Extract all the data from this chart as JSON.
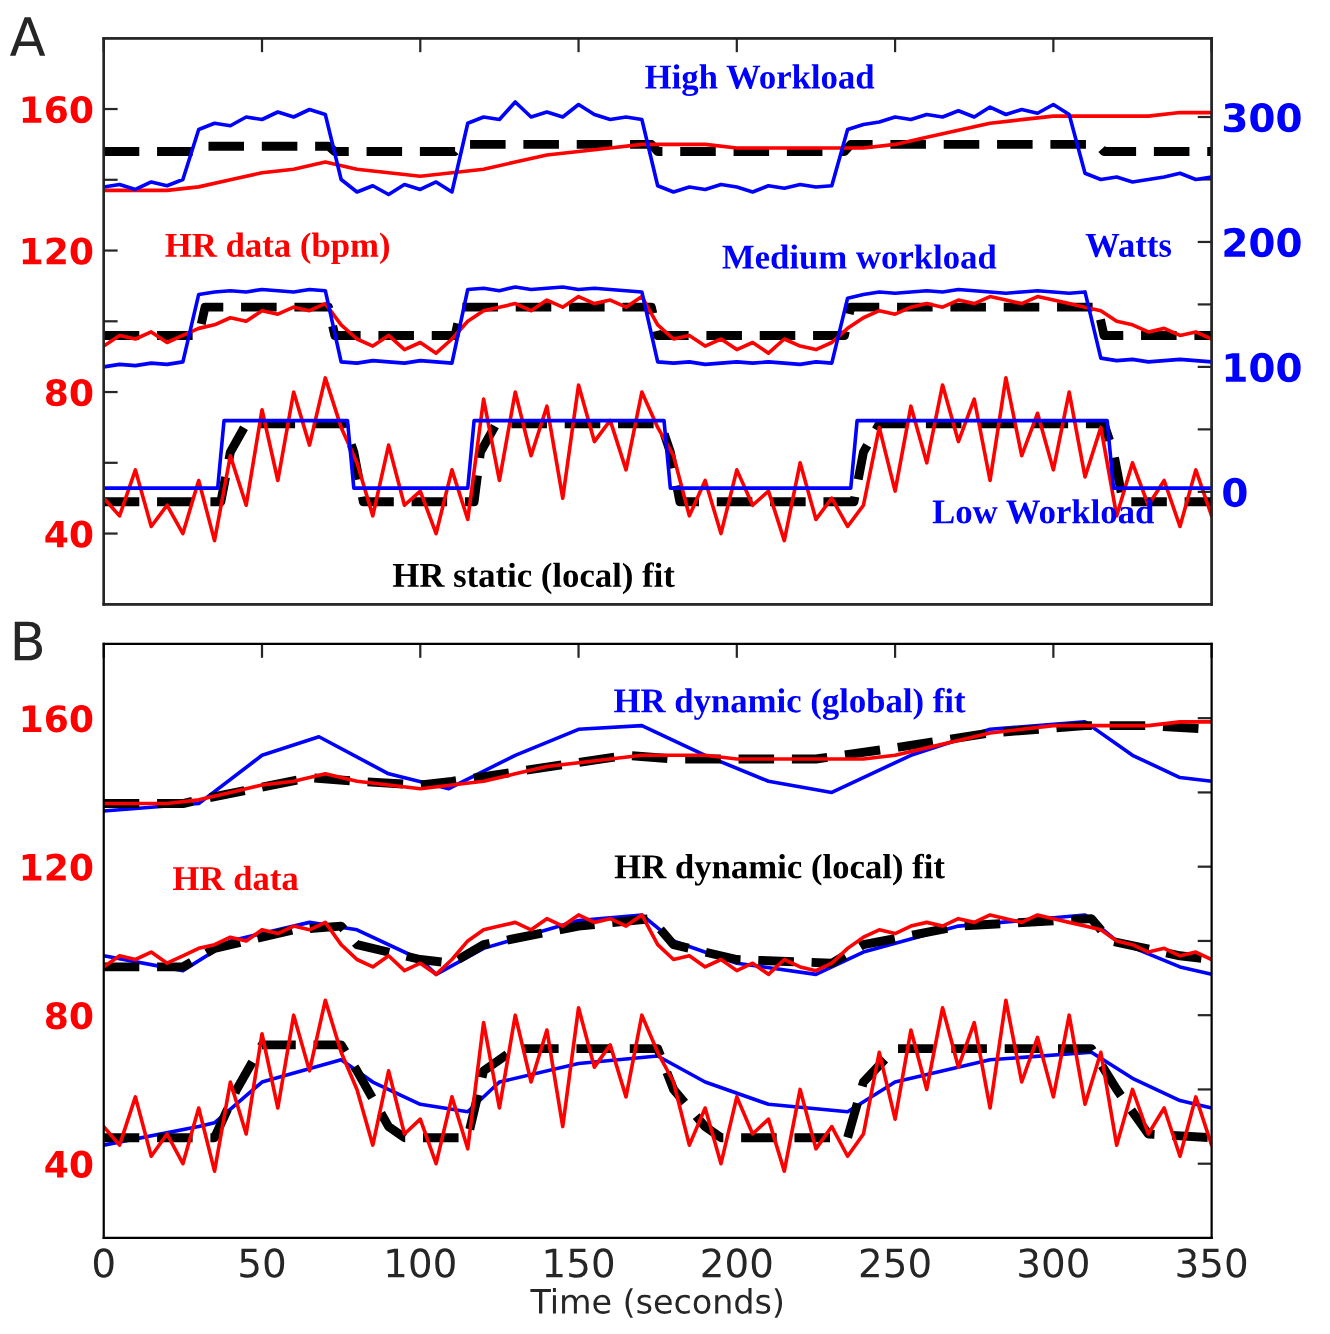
{
  "chart_data": [
    {
      "type": "line",
      "title": "A",
      "xlim": [
        0,
        350
      ],
      "xticks": [
        {
          "value": 0,
          "label": null
        },
        {
          "value": 50,
          "label": null
        },
        {
          "value": 100,
          "label": null
        },
        {
          "value": 150,
          "label": null
        },
        {
          "value": 200,
          "label": null
        },
        {
          "value": 250,
          "label": null
        },
        {
          "value": 300,
          "label": null
        },
        {
          "value": 350,
          "label": null
        }
      ],
      "ylim": [
        20,
        180
      ],
      "yticks": [
        40,
        {
          "value": 60,
          "label": null
        },
        80,
        {
          "value": 100,
          "label": null
        },
        120,
        {
          "value": 140,
          "label": null
        },
        160
      ],
      "y2label": "Watts",
      "y2lim": [
        -90,
        363
      ],
      "y2ticks": [
        0,
        {
          "value": 50,
          "label": null
        },
        100,
        {
          "value": 150,
          "label": null
        },
        200,
        {
          "value": 250,
          "label": null
        },
        300
      ],
      "tick_labels": "y",
      "marker": "none",
      "series": [
        {
          "name": "High Workload",
          "color": "#0000ff",
          "axis": "y2",
          "x": [
            0,
            5,
            10,
            15,
            20,
            25,
            30,
            35,
            40,
            45,
            50,
            55,
            60,
            65,
            70,
            75,
            80,
            85,
            90,
            95,
            100,
            105,
            110,
            115,
            120,
            125,
            130,
            135,
            140,
            145,
            150,
            155,
            160,
            165,
            170,
            175,
            180,
            185,
            190,
            195,
            200,
            205,
            210,
            215,
            220,
            225,
            230,
            235,
            240,
            245,
            250,
            255,
            260,
            265,
            270,
            275,
            280,
            285,
            290,
            295,
            300,
            305,
            310,
            315,
            320,
            325,
            330,
            335,
            340,
            345,
            350
          ],
          "values": [
            244,
            246,
            242,
            248,
            245,
            250,
            290,
            295,
            293,
            300,
            298,
            304,
            300,
            306,
            302,
            250,
            240,
            245,
            238,
            246,
            242,
            248,
            240,
            295,
            300,
            298,
            312,
            300,
            304,
            300,
            310,
            302,
            298,
            300,
            298,
            245,
            240,
            244,
            242,
            246,
            244,
            240,
            245,
            243,
            246,
            244,
            245,
            290,
            294,
            296,
            300,
            298,
            302,
            300,
            305,
            300,
            308,
            302,
            306,
            303,
            310,
            302,
            255,
            250,
            252,
            248,
            250,
            252,
            255,
            250,
            252
          ]
        },
        {
          "color": "#000000",
          "line_style": "dashed",
          "x": [
            0,
            30,
            32,
            71,
            73,
            111,
            113,
            173,
            175,
            234,
            236,
            314,
            316,
            350
          ],
          "values": [
            148,
            148,
            149.5,
            149.5,
            148,
            148,
            150,
            150,
            148,
            148,
            150,
            150,
            148,
            148
          ]
        },
        {
          "color": "#ff0000",
          "x": [
            0,
            10,
            20,
            30,
            40,
            50,
            60,
            70,
            80,
            90,
            100,
            110,
            120,
            130,
            140,
            150,
            160,
            170,
            180,
            190,
            200,
            210,
            220,
            230,
            240,
            250,
            260,
            270,
            280,
            290,
            300,
            310,
            320,
            330,
            340,
            350
          ],
          "values": [
            137,
            137,
            137,
            138,
            140,
            142,
            143,
            145,
            143,
            142,
            141,
            142,
            143,
            145,
            147,
            148,
            149,
            150,
            150,
            150,
            149,
            149,
            149,
            149,
            149,
            150,
            152,
            154,
            156,
            157,
            158,
            158,
            158,
            158,
            159,
            159
          ]
        },
        {
          "name": "Medium workload",
          "color": "#0000ff",
          "axis": "y2",
          "x": [
            0,
            5,
            10,
            15,
            20,
            25,
            30,
            35,
            40,
            45,
            50,
            55,
            60,
            65,
            70,
            75,
            80,
            85,
            90,
            95,
            100,
            105,
            110,
            115,
            120,
            125,
            130,
            135,
            140,
            145,
            150,
            155,
            160,
            165,
            170,
            175,
            180,
            185,
            190,
            195,
            200,
            205,
            210,
            215,
            220,
            225,
            230,
            235,
            240,
            245,
            250,
            255,
            260,
            265,
            270,
            275,
            280,
            285,
            290,
            295,
            300,
            305,
            310,
            315,
            320,
            325,
            330,
            335,
            340,
            345,
            350
          ],
          "values": [
            100,
            102,
            101,
            103,
            102,
            104,
            158,
            160,
            161,
            160,
            162,
            161,
            160,
            162,
            161,
            104,
            103,
            105,
            104,
            103,
            105,
            104,
            103,
            162,
            163,
            161,
            164,
            162,
            163,
            164,
            162,
            163,
            162,
            161,
            160,
            104,
            103,
            104,
            102,
            103,
            104,
            103,
            104,
            103,
            102,
            104,
            103,
            155,
            158,
            160,
            159,
            160,
            161,
            160,
            162,
            161,
            160,
            159,
            160,
            161,
            160,
            159,
            160,
            107,
            105,
            106,
            104,
            105,
            106,
            105,
            104
          ]
        },
        {
          "color": "#000000",
          "line_style": "dashed",
          "x": [
            0,
            30,
            32,
            71,
            73,
            111,
            113,
            173,
            175,
            234,
            236,
            314,
            316,
            350
          ],
          "values": [
            96,
            96,
            104,
            104,
            96,
            96,
            104,
            104,
            96,
            96,
            104,
            104,
            96,
            96
          ]
        },
        {
          "name": "HR data (bpm)",
          "color": "#ff0000",
          "x": [
            0,
            5,
            10,
            15,
            20,
            25,
            30,
            35,
            40,
            45,
            50,
            55,
            60,
            65,
            70,
            75,
            80,
            85,
            90,
            95,
            100,
            105,
            110,
            115,
            120,
            125,
            130,
            135,
            140,
            145,
            150,
            155,
            160,
            165,
            170,
            175,
            180,
            185,
            190,
            195,
            200,
            205,
            210,
            215,
            220,
            225,
            230,
            235,
            240,
            245,
            250,
            255,
            260,
            265,
            270,
            275,
            280,
            285,
            290,
            295,
            300,
            305,
            310,
            315,
            320,
            325,
            330,
            335,
            340,
            345,
            350
          ],
          "values": [
            93,
            96,
            95,
            97,
            94,
            96,
            98,
            99,
            101,
            100,
            103,
            102,
            104,
            103,
            105,
            99,
            95,
            93,
            96,
            92,
            94,
            91,
            95,
            100,
            103,
            104,
            105,
            103,
            106,
            104,
            107,
            105,
            106,
            104,
            107,
            99,
            95,
            96,
            93,
            95,
            92,
            94,
            91,
            95,
            93,
            92,
            94,
            98,
            101,
            103,
            102,
            104,
            105,
            104,
            106,
            105,
            107,
            106,
            105,
            107,
            106,
            105,
            104,
            103,
            100,
            99,
            97,
            98,
            96,
            97,
            95
          ]
        },
        {
          "name": "Low Workload",
          "color": "#0000ff",
          "axis": "y2",
          "x": [
            0,
            36,
            38,
            77,
            79,
            115,
            117,
            177,
            179,
            236,
            238,
            317,
            319,
            350
          ],
          "values": [
            3,
            3,
            57,
            57,
            3,
            3,
            57,
            57,
            3,
            3,
            57,
            57,
            3,
            3
          ]
        },
        {
          "name": "HR static (local) fit",
          "color": "#000000",
          "line_style": "dashed",
          "x": [
            0,
            37,
            40,
            45,
            76,
            79,
            82,
            117,
            119,
            124,
            176,
            179,
            182,
            237,
            240,
            245,
            316,
            319,
            322,
            350
          ],
          "values": [
            49,
            49,
            63,
            71,
            71,
            63,
            49,
            49,
            63,
            71,
            71,
            63,
            49,
            49,
            63,
            71,
            71,
            63,
            49,
            49
          ]
        },
        {
          "color": "#ff0000",
          "x": [
            0,
            5,
            10,
            15,
            20,
            25,
            30,
            35,
            40,
            45,
            50,
            55,
            60,
            65,
            70,
            75,
            80,
            85,
            90,
            95,
            100,
            105,
            110,
            115,
            120,
            125,
            130,
            135,
            140,
            145,
            150,
            155,
            160,
            165,
            170,
            175,
            180,
            185,
            190,
            195,
            200,
            205,
            210,
            215,
            220,
            225,
            230,
            235,
            240,
            245,
            250,
            255,
            260,
            265,
            270,
            275,
            280,
            285,
            290,
            295,
            300,
            305,
            310,
            315,
            320,
            325,
            330,
            335,
            340,
            345,
            350
          ],
          "values": [
            50,
            45,
            58,
            42,
            48,
            40,
            55,
            38,
            62,
            48,
            75,
            55,
            80,
            65,
            84,
            70,
            60,
            45,
            65,
            48,
            52,
            40,
            58,
            44,
            78,
            55,
            80,
            62,
            76,
            50,
            82,
            66,
            72,
            58,
            80,
            70,
            62,
            45,
            55,
            40,
            58,
            48,
            52,
            38,
            60,
            44,
            50,
            42,
            48,
            70,
            52,
            76,
            60,
            82,
            66,
            78,
            55,
            84,
            62,
            74,
            58,
            80,
            56,
            70,
            45,
            60,
            48,
            55,
            42,
            58,
            45
          ]
        }
      ]
    },
    {
      "type": "line",
      "title": "B",
      "xlabel": "Time (seconds)",
      "xlim": [
        0,
        350
      ],
      "xticks": [
        0,
        50,
        100,
        150,
        200,
        250,
        300,
        350
      ],
      "ylim": [
        20,
        180
      ],
      "yticks": [
        40,
        {
          "value": 60,
          "label": null
        },
        80,
        {
          "value": 100,
          "label": null
        },
        120,
        {
          "value": 140,
          "label": null
        },
        160
      ],
      "marker": "none",
      "series": [
        {
          "name": "HR dynamic (global) fit",
          "color": "#0000ff",
          "x": [
            0,
            30,
            50,
            68,
            90,
            109,
            130,
            150,
            170,
            190,
            210,
            230,
            255,
            280,
            310,
            325,
            340,
            350
          ],
          "values": [
            135,
            137,
            150,
            155,
            145,
            141,
            150,
            157,
            158,
            150,
            143,
            140,
            150,
            157,
            159,
            150,
            144,
            143
          ]
        },
        {
          "color": "#000000",
          "line_style": "dashed",
          "x": [
            0,
            25,
            30,
            65,
            80,
            100,
            110,
            165,
            180,
            225,
            250,
            280,
            310,
            330,
            350
          ],
          "values": [
            137,
            137,
            138,
            144,
            143,
            142,
            143,
            150,
            149,
            149,
            152,
            156,
            158,
            158,
            157
          ]
        },
        {
          "color": "#ff0000",
          "x": [
            0,
            10,
            20,
            30,
            40,
            50,
            60,
            70,
            80,
            90,
            100,
            110,
            120,
            130,
            140,
            150,
            160,
            170,
            180,
            190,
            200,
            210,
            220,
            230,
            240,
            250,
            260,
            270,
            280,
            290,
            300,
            310,
            320,
            330,
            340,
            350
          ],
          "values": [
            137,
            137,
            137,
            138,
            140,
            142,
            143,
            145,
            143,
            142,
            141,
            142,
            143,
            145,
            147,
            148,
            149,
            150,
            150,
            150,
            149,
            149,
            149,
            149,
            149,
            150,
            152,
            154,
            156,
            157,
            158,
            158,
            158,
            158,
            159,
            159
          ]
        },
        {
          "color": "#0000ff",
          "x": [
            0,
            25,
            40,
            65,
            80,
            100,
            105,
            120,
            150,
            170,
            180,
            200,
            225,
            240,
            270,
            310,
            320,
            340,
            350
          ],
          "values": [
            96,
            92,
            100,
            105,
            103,
            95,
            91,
            98,
            105.5,
            107,
            100,
            94,
            91,
            97,
            104,
            107,
            100,
            93,
            91
          ]
        },
        {
          "name": "HR dynamic (local) fit",
          "color": "#000000",
          "line_style": "dashed",
          "x": [
            0,
            25,
            35,
            60,
            75,
            80,
            100,
            110,
            120,
            150,
            173,
            180,
            200,
            230,
            240,
            270,
            312,
            318,
            340,
            350
          ],
          "values": [
            93,
            93,
            98,
            103,
            104,
            99,
            95,
            94,
            99,
            104,
            106,
            99,
            95,
            94,
            99,
            104,
            106,
            100,
            96,
            95
          ]
        },
        {
          "name": "HR data",
          "color": "#ff0000",
          "x": [
            0,
            5,
            10,
            15,
            20,
            25,
            30,
            35,
            40,
            45,
            50,
            55,
            60,
            65,
            70,
            75,
            80,
            85,
            90,
            95,
            100,
            105,
            110,
            115,
            120,
            125,
            130,
            135,
            140,
            145,
            150,
            155,
            160,
            165,
            170,
            175,
            180,
            185,
            190,
            195,
            200,
            205,
            210,
            215,
            220,
            225,
            230,
            235,
            240,
            245,
            250,
            255,
            260,
            265,
            270,
            275,
            280,
            285,
            290,
            295,
            300,
            305,
            310,
            315,
            320,
            325,
            330,
            335,
            340,
            345,
            350
          ],
          "values": [
            93,
            96,
            95,
            97,
            94,
            96,
            98,
            99,
            101,
            100,
            103,
            102,
            104,
            103,
            105,
            99,
            95,
            93,
            96,
            92,
            94,
            91,
            95,
            100,
            103,
            104,
            105,
            103,
            106,
            104,
            107,
            105,
            106,
            104,
            107,
            99,
            95,
            96,
            93,
            95,
            92,
            94,
            91,
            95,
            93,
            92,
            94,
            98,
            101,
            103,
            102,
            104,
            105,
            104,
            106,
            105,
            107,
            106,
            105,
            107,
            106,
            105,
            104,
            103,
            100,
            99,
            97,
            98,
            96,
            97,
            95
          ]
        },
        {
          "color": "#0000ff",
          "x": [
            0,
            30,
            35,
            50,
            75,
            85,
            100,
            115,
            125,
            150,
            175,
            190,
            210,
            235,
            250,
            280,
            312,
            325,
            340,
            350
          ],
          "values": [
            45,
            50,
            51,
            62,
            68,
            62,
            56,
            54,
            62,
            67,
            69,
            62,
            56,
            54,
            62,
            68,
            70,
            63,
            57,
            55
          ]
        },
        {
          "color": "#000000",
          "line_style": "dashed",
          "x": [
            0,
            35,
            42,
            50,
            75,
            80,
            90,
            95,
            115,
            120,
            130,
            175,
            180,
            190,
            195,
            235,
            240,
            250,
            312,
            320,
            330,
            350
          ],
          "values": [
            47,
            47,
            60,
            72,
            72,
            65,
            50,
            47,
            47,
            65,
            71,
            71,
            60,
            50,
            47,
            47,
            62,
            71,
            71,
            60,
            48,
            47
          ]
        },
        {
          "color": "#ff0000",
          "x": [
            0,
            5,
            10,
            15,
            20,
            25,
            30,
            35,
            40,
            45,
            50,
            55,
            60,
            65,
            70,
            75,
            80,
            85,
            90,
            95,
            100,
            105,
            110,
            115,
            120,
            125,
            130,
            135,
            140,
            145,
            150,
            155,
            160,
            165,
            170,
            175,
            180,
            185,
            190,
            195,
            200,
            205,
            210,
            215,
            220,
            225,
            230,
            235,
            240,
            245,
            250,
            255,
            260,
            265,
            270,
            275,
            280,
            285,
            290,
            295,
            300,
            305,
            310,
            315,
            320,
            325,
            330,
            335,
            340,
            345,
            350
          ],
          "values": [
            50,
            45,
            58,
            42,
            48,
            40,
            55,
            38,
            62,
            48,
            75,
            55,
            80,
            65,
            84,
            70,
            60,
            45,
            65,
            48,
            52,
            40,
            58,
            44,
            78,
            55,
            80,
            62,
            76,
            50,
            82,
            66,
            72,
            58,
            80,
            70,
            62,
            45,
            55,
            40,
            58,
            48,
            52,
            38,
            60,
            44,
            50,
            42,
            48,
            70,
            52,
            76,
            60,
            82,
            66,
            78,
            55,
            84,
            62,
            74,
            58,
            80,
            56,
            70,
            45,
            60,
            48,
            55,
            42,
            58,
            45
          ]
        }
      ]
    }
  ]
}
